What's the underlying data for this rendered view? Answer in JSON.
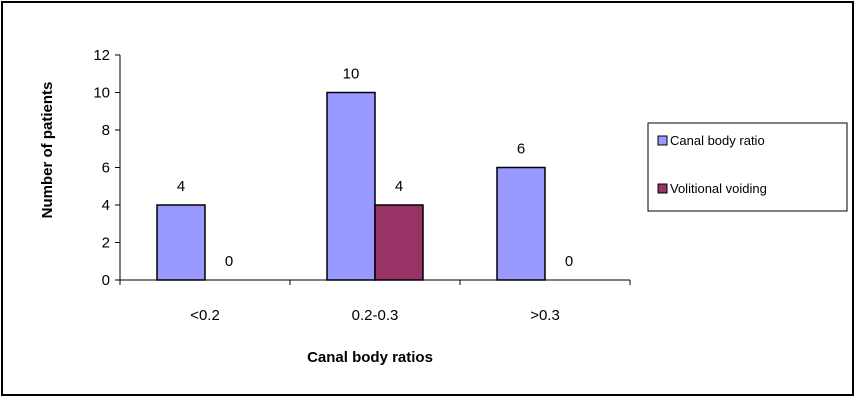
{
  "chart_data": {
    "type": "bar",
    "categories": [
      "<0.2",
      "0.2-0.3",
      ">0.3"
    ],
    "series": [
      {
        "name": "Canal body ratio",
        "values": [
          4,
          10,
          6
        ],
        "color": "#9999ff"
      },
      {
        "name": "Volitional voiding",
        "values": [
          0,
          4,
          0
        ],
        "color": "#993366"
      }
    ],
    "data_labels": [
      [
        "4",
        "10",
        "6"
      ],
      [
        "0",
        "4",
        "0"
      ]
    ],
    "xlabel": "Canal body ratios",
    "ylabel": "Number of patients",
    "ylim": [
      0,
      12
    ],
    "yticks": [
      "0",
      "2",
      "4",
      "6",
      "8",
      "10",
      "12"
    ],
    "grid": false,
    "legend_position": "right"
  }
}
